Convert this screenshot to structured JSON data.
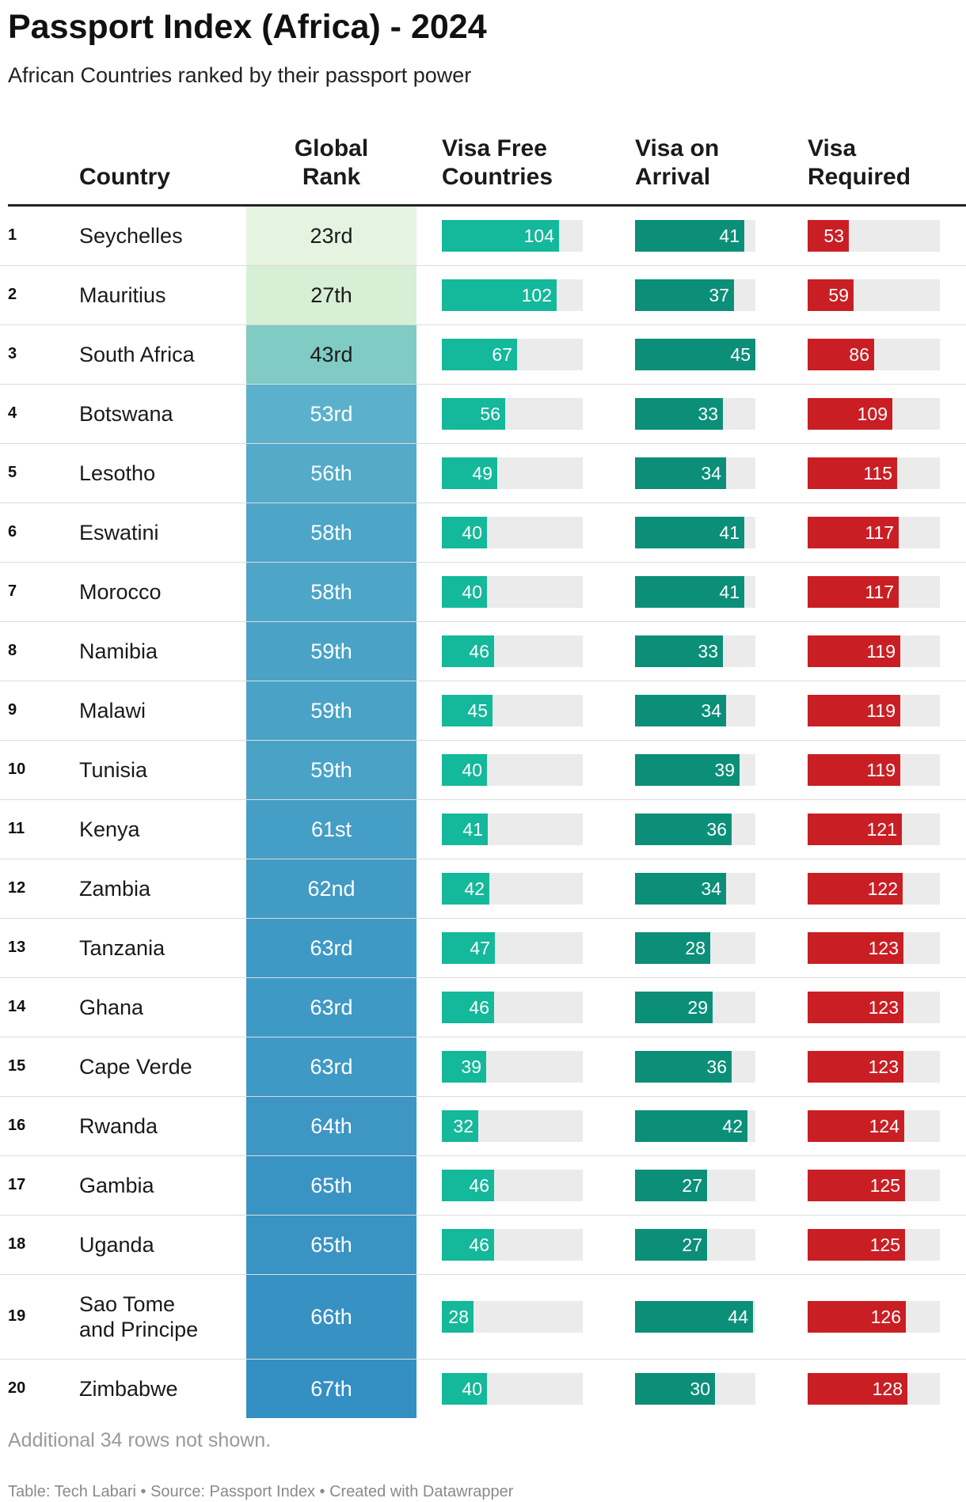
{
  "title": "Passport Index (Africa) - 2024",
  "subtitle": "African Countries ranked by their passport power",
  "headers": {
    "country": "Country",
    "rank": "Global\nRank",
    "visa_free": "Visa Free\nCountries",
    "visa_arrival": "Visa on\nArrival",
    "visa_required": "Visa\nRequired"
  },
  "colors": {
    "visa_free": "#14b89a",
    "visa_arrival": "#0b8f78",
    "visa_required": "#c91f24",
    "track": "#ebebeb",
    "rank_scale": [
      "#eef8e8",
      "#d6efd5",
      "#80cbc4",
      "#5bb1cb",
      "#2c88c0"
    ]
  },
  "chart_data": {
    "type": "table",
    "columns": [
      "Country",
      "Global Rank",
      "Visa Free Countries",
      "Visa on Arrival",
      "Visa Required"
    ],
    "max": {
      "visa_free": 125,
      "visa_arrival": 45,
      "visa_required": 170
    },
    "rows": [
      {
        "n": "1",
        "country": "Seychelles",
        "rank": "23rd",
        "rank_num": 23,
        "visa_free": 104,
        "visa_arrival": 41,
        "visa_required": 53
      },
      {
        "n": "2",
        "country": "Mauritius",
        "rank": "27th",
        "rank_num": 27,
        "visa_free": 102,
        "visa_arrival": 37,
        "visa_required": 59
      },
      {
        "n": "3",
        "country": "South Africa",
        "rank": "43rd",
        "rank_num": 43,
        "visa_free": 67,
        "visa_arrival": 45,
        "visa_required": 86
      },
      {
        "n": "4",
        "country": "Botswana",
        "rank": "53rd",
        "rank_num": 53,
        "visa_free": 56,
        "visa_arrival": 33,
        "visa_required": 109
      },
      {
        "n": "5",
        "country": "Lesotho",
        "rank": "56th",
        "rank_num": 56,
        "visa_free": 49,
        "visa_arrival": 34,
        "visa_required": 115
      },
      {
        "n": "6",
        "country": "Eswatini",
        "rank": "58th",
        "rank_num": 58,
        "visa_free": 40,
        "visa_arrival": 41,
        "visa_required": 117
      },
      {
        "n": "7",
        "country": "Morocco",
        "rank": "58th",
        "rank_num": 58,
        "visa_free": 40,
        "visa_arrival": 41,
        "visa_required": 117
      },
      {
        "n": "8",
        "country": "Namibia",
        "rank": "59th",
        "rank_num": 59,
        "visa_free": 46,
        "visa_arrival": 33,
        "visa_required": 119
      },
      {
        "n": "9",
        "country": "Malawi",
        "rank": "59th",
        "rank_num": 59,
        "visa_free": 45,
        "visa_arrival": 34,
        "visa_required": 119
      },
      {
        "n": "10",
        "country": "Tunisia",
        "rank": "59th",
        "rank_num": 59,
        "visa_free": 40,
        "visa_arrival": 39,
        "visa_required": 119
      },
      {
        "n": "11",
        "country": "Kenya",
        "rank": "61st",
        "rank_num": 61,
        "visa_free": 41,
        "visa_arrival": 36,
        "visa_required": 121
      },
      {
        "n": "12",
        "country": "Zambia",
        "rank": "62nd",
        "rank_num": 62,
        "visa_free": 42,
        "visa_arrival": 34,
        "visa_required": 122
      },
      {
        "n": "13",
        "country": "Tanzania",
        "rank": "63rd",
        "rank_num": 63,
        "visa_free": 47,
        "visa_arrival": 28,
        "visa_required": 123
      },
      {
        "n": "14",
        "country": "Ghana",
        "rank": "63rd",
        "rank_num": 63,
        "visa_free": 46,
        "visa_arrival": 29,
        "visa_required": 123
      },
      {
        "n": "15",
        "country": "Cape Verde",
        "rank": "63rd",
        "rank_num": 63,
        "visa_free": 39,
        "visa_arrival": 36,
        "visa_required": 123
      },
      {
        "n": "16",
        "country": "Rwanda",
        "rank": "64th",
        "rank_num": 64,
        "visa_free": 32,
        "visa_arrival": 42,
        "visa_required": 124
      },
      {
        "n": "17",
        "country": "Gambia",
        "rank": "65th",
        "rank_num": 65,
        "visa_free": 46,
        "visa_arrival": 27,
        "visa_required": 125
      },
      {
        "n": "18",
        "country": "Uganda",
        "rank": "65th",
        "rank_num": 65,
        "visa_free": 46,
        "visa_arrival": 27,
        "visa_required": 125
      },
      {
        "n": "19",
        "country": "Sao Tome\nand Principe",
        "rank": "66th",
        "rank_num": 66,
        "visa_free": 28,
        "visa_arrival": 44,
        "visa_required": 126
      },
      {
        "n": "20",
        "country": "Zimbabwe",
        "rank": "67th",
        "rank_num": 67,
        "visa_free": 40,
        "visa_arrival": 30,
        "visa_required": 128
      }
    ]
  },
  "note": "Additional 34 rows not shown.",
  "footer": "Table: Tech Labari • Source: Passport Index • Created with Datawrapper"
}
